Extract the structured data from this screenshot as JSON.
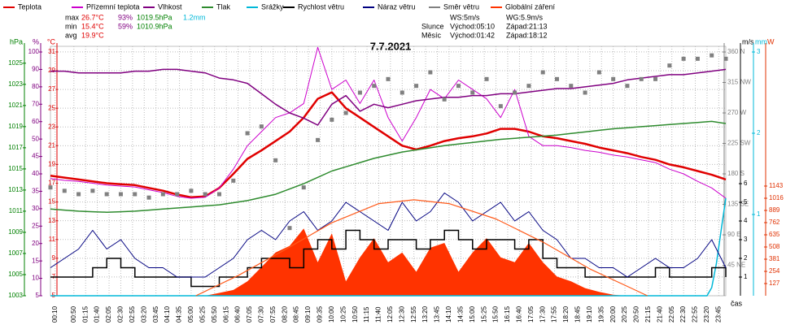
{
  "chart_data": {
    "type": "line",
    "title": "7.7.2021",
    "x_label": "čas",
    "xlim": [
      0,
      1440
    ],
    "xticks": [
      {
        "value": 10,
        "label": "00:10"
      },
      {
        "value": 50,
        "label": "00:50"
      },
      {
        "value": 75,
        "label": "01:15"
      },
      {
        "value": 100,
        "label": "01:40"
      },
      {
        "value": 125,
        "label": "02:05"
      },
      {
        "value": 150,
        "label": "02:30"
      },
      {
        "value": 175,
        "label": "02:55"
      },
      {
        "value": 200,
        "label": "03:20"
      },
      {
        "value": 225,
        "label": "03:45"
      },
      {
        "value": 250,
        "label": "04:10"
      },
      {
        "value": 275,
        "label": "04:35"
      },
      {
        "value": 300,
        "label": "05:00"
      },
      {
        "value": 325,
        "label": "05:25"
      },
      {
        "value": 350,
        "label": "05:50"
      },
      {
        "value": 375,
        "label": "06:15"
      },
      {
        "value": 400,
        "label": "06:40"
      },
      {
        "value": 425,
        "label": "07:05"
      },
      {
        "value": 450,
        "label": "07:30"
      },
      {
        "value": 475,
        "label": "07:55"
      },
      {
        "value": 500,
        "label": "08:20"
      },
      {
        "value": 525,
        "label": "08:45"
      },
      {
        "value": 550,
        "label": "09:10"
      },
      {
        "value": 575,
        "label": "09:35"
      },
      {
        "value": 600,
        "label": "10:00"
      },
      {
        "value": 625,
        "label": "10:25"
      },
      {
        "value": 650,
        "label": "10:50"
      },
      {
        "value": 675,
        "label": "11:15"
      },
      {
        "value": 700,
        "label": "11:40"
      },
      {
        "value": 725,
        "label": "12:05"
      },
      {
        "value": 750,
        "label": "12:30"
      },
      {
        "value": 775,
        "label": "12:55"
      },
      {
        "value": 800,
        "label": "13:20"
      },
      {
        "value": 825,
        "label": "13:45"
      },
      {
        "value": 850,
        "label": "14:10"
      },
      {
        "value": 875,
        "label": "14:35"
      },
      {
        "value": 900,
        "label": "15:00"
      },
      {
        "value": 925,
        "label": "15:25"
      },
      {
        "value": 950,
        "label": "15:50"
      },
      {
        "value": 975,
        "label": "16:15"
      },
      {
        "value": 1000,
        "label": "16:40"
      },
      {
        "value": 1025,
        "label": "17:05"
      },
      {
        "value": 1050,
        "label": "17:30"
      },
      {
        "value": 1075,
        "label": "17:55"
      },
      {
        "value": 1100,
        "label": "18:20"
      },
      {
        "value": 1125,
        "label": "18:45"
      },
      {
        "value": 1150,
        "label": "19:10"
      },
      {
        "value": 1175,
        "label": "19:35"
      },
      {
        "value": 1200,
        "label": "20:00"
      },
      {
        "value": 1225,
        "label": "20:25"
      },
      {
        "value": 1250,
        "label": "20:50"
      },
      {
        "value": 1275,
        "label": "21:15"
      },
      {
        "value": 1300,
        "label": "21:40"
      },
      {
        "value": 1325,
        "label": "22:05"
      },
      {
        "value": 1350,
        "label": "22:30"
      },
      {
        "value": 1375,
        "label": "22:55"
      },
      {
        "value": 1400,
        "label": "23:20"
      },
      {
        "value": 1425,
        "label": "23:45"
      }
    ],
    "grid": true,
    "axes": [
      {
        "unit": "hPa",
        "color": "#008000",
        "side": "left",
        "ylim": [
          1003,
          1026.6
        ],
        "yticks": [
          1003,
          1005,
          1007,
          1009,
          1011,
          1013,
          1015,
          1017,
          1019,
          1021,
          1023,
          1025
        ]
      },
      {
        "unit": "%",
        "color": "#800080",
        "side": "left",
        "piecewise": true,
        "ylim": [
          5,
          100
        ],
        "yticks": [
          5,
          10,
          15,
          20,
          25,
          30,
          35,
          40,
          45,
          50,
          60,
          70,
          80,
          90,
          100
        ]
      },
      {
        "unit": "°C",
        "color": "#e00000",
        "side": "left",
        "ylim": [
          5,
          31.6
        ],
        "yticks": [
          5,
          7,
          9,
          11,
          13,
          15,
          17,
          19,
          21,
          23,
          25,
          27,
          29,
          31
        ]
      },
      {
        "color": "#808080",
        "side": "right",
        "ylim": [
          0,
          368.4
        ],
        "yticks": [
          {
            "value": 45,
            "label": "45 NE"
          },
          {
            "value": 90,
            "label": "90 E"
          },
          {
            "value": 135,
            "label": "135 SE"
          },
          {
            "value": 180,
            "label": "180 S"
          },
          {
            "value": 225,
            "label": "225 SW"
          },
          {
            "value": 270,
            "label": "270 W"
          },
          {
            "value": 315,
            "label": "315 NW"
          },
          {
            "value": 360,
            "label": "360 N"
          }
        ]
      },
      {
        "unit": "m/s",
        "color": "#000000",
        "side": "right",
        "ylim": [
          0,
          13.35
        ],
        "yticks": [
          1,
          2,
          3,
          4,
          5,
          6
        ]
      },
      {
        "unit": "mm",
        "color": "#00b8d8",
        "side": "right",
        "ylim": [
          0,
          3.07
        ],
        "yticks": [
          1,
          2,
          3
        ]
      },
      {
        "unit": "W",
        "color": "#e03000",
        "side": "right",
        "ylim": [
          0,
          2599
        ],
        "yticks": [
          127,
          254,
          381,
          508,
          635,
          762,
          889,
          1016,
          1143
        ]
      }
    ],
    "x": [
      0,
      30,
      60,
      90,
      120,
      150,
      180,
      210,
      240,
      270,
      300,
      330,
      360,
      390,
      420,
      450,
      480,
      510,
      540,
      570,
      600,
      630,
      660,
      690,
      720,
      750,
      780,
      810,
      840,
      870,
      900,
      930,
      960,
      990,
      1020,
      1050,
      1080,
      1110,
      1140,
      1170,
      1200,
      1230,
      1260,
      1290,
      1320,
      1350,
      1380,
      1410,
      1440
    ],
    "series": [
      {
        "name": "Teplota",
        "color": "#e00000",
        "kind": "line",
        "axis": 2,
        "width": 2.5,
        "values": [
          17.8,
          17.6,
          17.4,
          17.2,
          17.0,
          16.9,
          16.8,
          16.5,
          16.2,
          15.8,
          15.5,
          15.6,
          16.5,
          18,
          19.6,
          20.5,
          21.5,
          22.5,
          24,
          26,
          26.7,
          25,
          24,
          23,
          22,
          21,
          20.6,
          21,
          21.5,
          21.8,
          22,
          22.3,
          22.8,
          22.8,
          22.5,
          22,
          21.8,
          21.5,
          21.2,
          20.8,
          20.5,
          20.2,
          19.8,
          19.5,
          19,
          18.7,
          18.3,
          17.9,
          17.4
        ]
      },
      {
        "name": "Přízemní teplota",
        "color": "#cc00cc",
        "kind": "line",
        "axis": 2,
        "width": 1,
        "values": [
          17.5,
          17.3,
          17.2,
          17.0,
          16.8,
          16.7,
          16.6,
          16.3,
          16.0,
          15.6,
          15.4,
          15.5,
          16.5,
          18.5,
          21,
          22.5,
          24,
          24.5,
          25.5,
          31.5,
          27,
          28,
          25.5,
          28,
          24,
          21.5,
          24,
          27,
          26,
          28,
          27,
          26,
          24,
          27,
          22,
          21,
          21,
          20.8,
          20.5,
          20.3,
          20,
          19.8,
          19.5,
          19.2,
          18.5,
          18,
          17.2,
          16.5,
          15.4
        ]
      },
      {
        "name": "Vlhkost",
        "color": "#800080",
        "kind": "line",
        "axis": 1,
        "width": 1.5,
        "values": [
          89,
          89,
          88,
          88,
          88,
          88,
          89,
          89,
          90,
          90,
          89,
          88,
          85,
          84,
          82,
          76,
          70,
          65,
          62,
          58,
          70,
          75,
          66,
          70,
          68,
          70,
          72,
          73,
          74,
          74,
          75,
          75,
          76,
          76,
          77,
          78,
          79,
          79,
          80,
          81,
          82,
          84,
          85,
          86,
          87,
          87,
          88,
          89,
          90
        ]
      },
      {
        "name": "Tlak",
        "color": "#2e8b2e",
        "kind": "line",
        "axis": 0,
        "width": 1.5,
        "values": [
          1011.2,
          1011.1,
          1011.0,
          1010.95,
          1010.9,
          1010.95,
          1011.0,
          1011.1,
          1011.2,
          1011.3,
          1011.4,
          1011.5,
          1011.6,
          1011.8,
          1012.0,
          1012.3,
          1012.6,
          1013.1,
          1013.6,
          1014.2,
          1014.8,
          1015.2,
          1015.6,
          1016.0,
          1016.3,
          1016.6,
          1016.8,
          1017.0,
          1017.2,
          1017.35,
          1017.5,
          1017.65,
          1017.8,
          1017.9,
          1018.0,
          1018.1,
          1018.2,
          1018.35,
          1018.5,
          1018.65,
          1018.8,
          1018.9,
          1019.0,
          1019.1,
          1019.2,
          1019.3,
          1019.4,
          1019.5,
          1019.3
        ]
      },
      {
        "name": "Srážky",
        "color": "#00b8d8",
        "kind": "line",
        "axis": 5,
        "width": 1.5,
        "x": [
          0,
          1400,
          1410,
          1420,
          1430,
          1440
        ],
        "values": [
          0,
          0,
          0.1,
          0.4,
          0.8,
          1.2
        ]
      },
      {
        "name": "Rychlost větru",
        "color": "#000000",
        "kind": "step",
        "axis": 4,
        "width": 1.5,
        "values": [
          1,
          1,
          1,
          1.5,
          2,
          1.5,
          1,
          1,
          1,
          1,
          0.5,
          0.5,
          1,
          1,
          1.5,
          2,
          2,
          1.5,
          2.5,
          3,
          2.5,
          3.5,
          3,
          2.5,
          3,
          3,
          2.5,
          3,
          3.5,
          3,
          2.5,
          3,
          3,
          2.5,
          3,
          2,
          1.5,
          1.5,
          1,
          1,
          1,
          1,
          1,
          1.5,
          1,
          1,
          1,
          1.5,
          1
        ]
      },
      {
        "name": "Náraz větru",
        "color": "#000080",
        "kind": "line",
        "axis": 4,
        "width": 1,
        "values": [
          1.5,
          2,
          2.5,
          3.5,
          2.5,
          3,
          2,
          1.5,
          1.5,
          1,
          1,
          1,
          1.5,
          2,
          3,
          3.5,
          3,
          4,
          4.5,
          3.5,
          4,
          5,
          4.5,
          4,
          3.5,
          5,
          4,
          4.5,
          5.5,
          5,
          4,
          4.5,
          5,
          4,
          4.5,
          3.5,
          3,
          2,
          2,
          1.5,
          1.5,
          1,
          1.5,
          2,
          1.5,
          1.5,
          2,
          3,
          1.5
        ]
      },
      {
        "name": "Směr větru",
        "color": "#808080",
        "kind": "scatter",
        "axis": 3,
        "values": [
          160,
          155,
          150,
          155,
          150,
          150,
          150,
          145,
          150,
          150,
          155,
          150,
          150,
          170,
          240,
          250,
          200,
          100,
          160,
          230,
          260,
          270,
          300,
          310,
          320,
          300,
          310,
          330,
          290,
          310,
          300,
          320,
          280,
          300,
          310,
          330,
          320,
          310,
          300,
          330,
          320,
          310,
          320,
          320,
          340,
          350,
          350,
          355,
          350
        ]
      },
      {
        "name": "Globální záření",
        "color": "#ff3300",
        "kind": "area",
        "axis": 6,
        "values": [
          0,
          0,
          0,
          0,
          0,
          0,
          0,
          0,
          0,
          0,
          0,
          0,
          30,
          60,
          150,
          300,
          450,
          520,
          700,
          350,
          650,
          150,
          400,
          600,
          350,
          450,
          250,
          500,
          550,
          250,
          450,
          600,
          400,
          350,
          550,
          350,
          200,
          150,
          80,
          40,
          10,
          0,
          0,
          0,
          0,
          0,
          0,
          0,
          0
        ]
      },
      {
        "color": "#ff5a1a",
        "kind": "line",
        "axis": 6,
        "width": 1.2,
        "x": [
          310,
          400,
          500,
          600,
          700,
          775,
          850,
          950,
          1050,
          1150,
          1273
        ],
        "values": [
          0,
          210,
          480,
          760,
          960,
          1000,
          960,
          800,
          560,
          280,
          0
        ]
      }
    ],
    "stats": [
      [
        "max",
        "26.7°C",
        "93%",
        "1019.5hPa",
        "1.2mm"
      ],
      [
        "min",
        "15.4°C",
        "59%",
        "1010.9hPa"
      ],
      [
        "avg",
        "19.9°C"
      ]
    ],
    "info": [
      [
        "WS:5m/s",
        "WG:5.9m/s"
      ],
      [
        "Slunce",
        "Východ:05:10",
        "Západ:21:13"
      ],
      [
        "Měsíc",
        "Východ:01:42",
        "Západ:18:12"
      ]
    ]
  }
}
